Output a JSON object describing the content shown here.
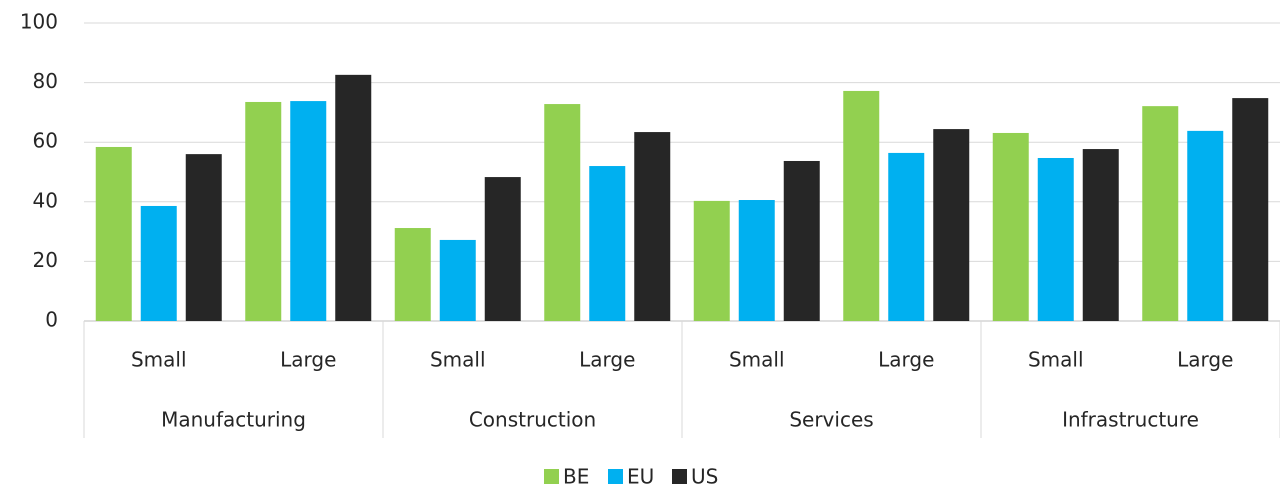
{
  "chart_data": {
    "type": "bar",
    "categories": [
      "Small",
      "Large",
      "Small",
      "Large",
      "Small",
      "Large",
      "Small",
      "Large"
    ],
    "groups": [
      "Manufacturing",
      "Construction",
      "Services",
      "Infrastructure"
    ],
    "series": [
      {
        "name": "BE",
        "color": "#92d050",
        "values": [
          58.4,
          73.5,
          31.2,
          72.8,
          40.3,
          77.2,
          63.1,
          72.1
        ]
      },
      {
        "name": "EU",
        "color": "#00b0f0",
        "values": [
          38.6,
          73.8,
          27.2,
          52.0,
          40.6,
          56.4,
          54.7,
          63.8
        ]
      },
      {
        "name": "US",
        "color": "#262626",
        "values": [
          56.0,
          82.6,
          48.3,
          63.4,
          53.7,
          64.4,
          57.7,
          74.8
        ]
      }
    ],
    "ylim": [
      0,
      100
    ],
    "yticks": [
      0,
      20,
      40,
      60,
      80,
      100
    ],
    "grid": true,
    "legend": "bottom"
  }
}
